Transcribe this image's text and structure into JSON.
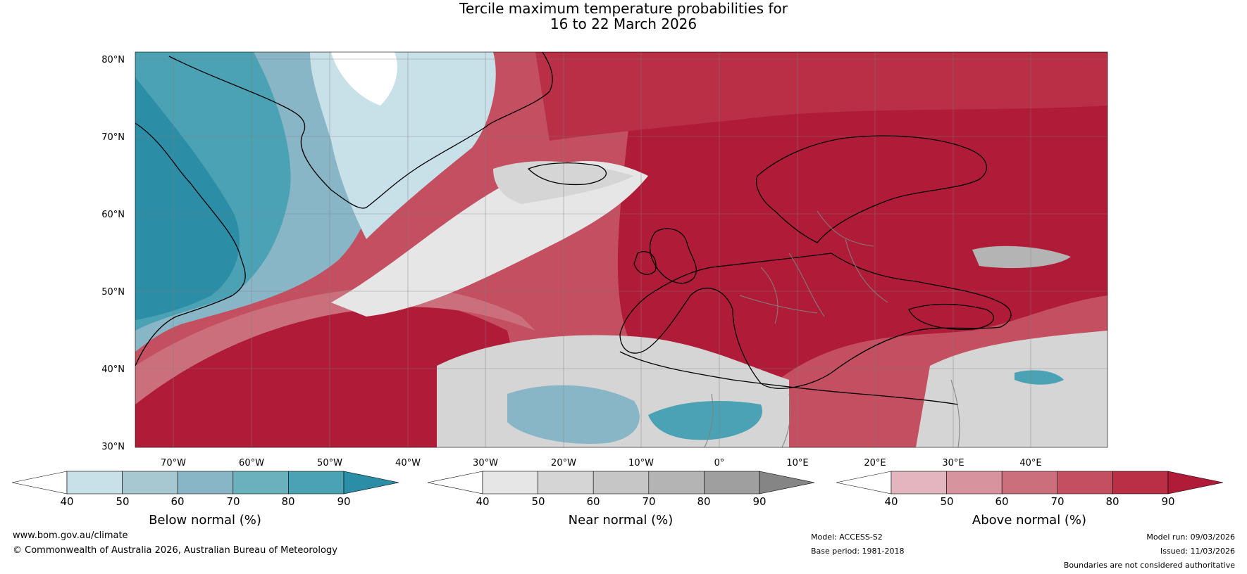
{
  "title": {
    "line1": "Tercile maximum temperature probabilities for",
    "line2": "16 to 22 March 2026"
  },
  "axes": {
    "lat_labels": [
      "80°N",
      "70°N",
      "60°N",
      "50°N",
      "40°N",
      "30°N"
    ],
    "lon_labels": [
      "70°W",
      "60°W",
      "50°W",
      "40°W",
      "30°W",
      "20°W",
      "10°W",
      "0°",
      "10°E",
      "20°E",
      "30°E",
      "40°E"
    ]
  },
  "colorbars": [
    {
      "name": "below",
      "label": "Below normal (%)",
      "ticks": [
        "40",
        "50",
        "60",
        "70",
        "80",
        "90"
      ],
      "colors": [
        "#ffffff",
        "#c8e0e7",
        "#a7c7d1",
        "#88b6c6",
        "#6ab0bd",
        "#4aa2b4",
        "#2c8ea6"
      ]
    },
    {
      "name": "near",
      "label": "Near normal (%)",
      "ticks": [
        "40",
        "50",
        "60",
        "70",
        "80",
        "90"
      ],
      "colors": [
        "#ffffff",
        "#e6e6e6",
        "#d5d5d5",
        "#c6c6c6",
        "#b4b4b4",
        "#9f9f9f",
        "#858585"
      ]
    },
    {
      "name": "above",
      "label": "Above normal (%)",
      "ticks": [
        "40",
        "50",
        "60",
        "70",
        "80",
        "90"
      ],
      "colors": [
        "#ffffff",
        "#e3b6bf",
        "#d7949e",
        "#cc6f7c",
        "#c34f60",
        "#b92f45",
        "#b01c38"
      ]
    }
  ],
  "footer": {
    "website": "www.bom.gov.au/climate",
    "copyright": "© Commonwealth of Australia 2026, Australian Bureau of Meteorology",
    "model": "Model: ACCESS-S2",
    "base_period": "Base period: 1981-2018",
    "model_run": "Model run: 09/03/2026",
    "issued": "Issued: 11/03/2026",
    "disclaimer": "Boundaries are not considered authoritative"
  },
  "colors": {
    "ocean_red": "#b01c38",
    "teal_dark": "#2c8ea6",
    "gray_mid": "#d5d5d5",
    "coast": "#000000",
    "border": "#808080"
  }
}
